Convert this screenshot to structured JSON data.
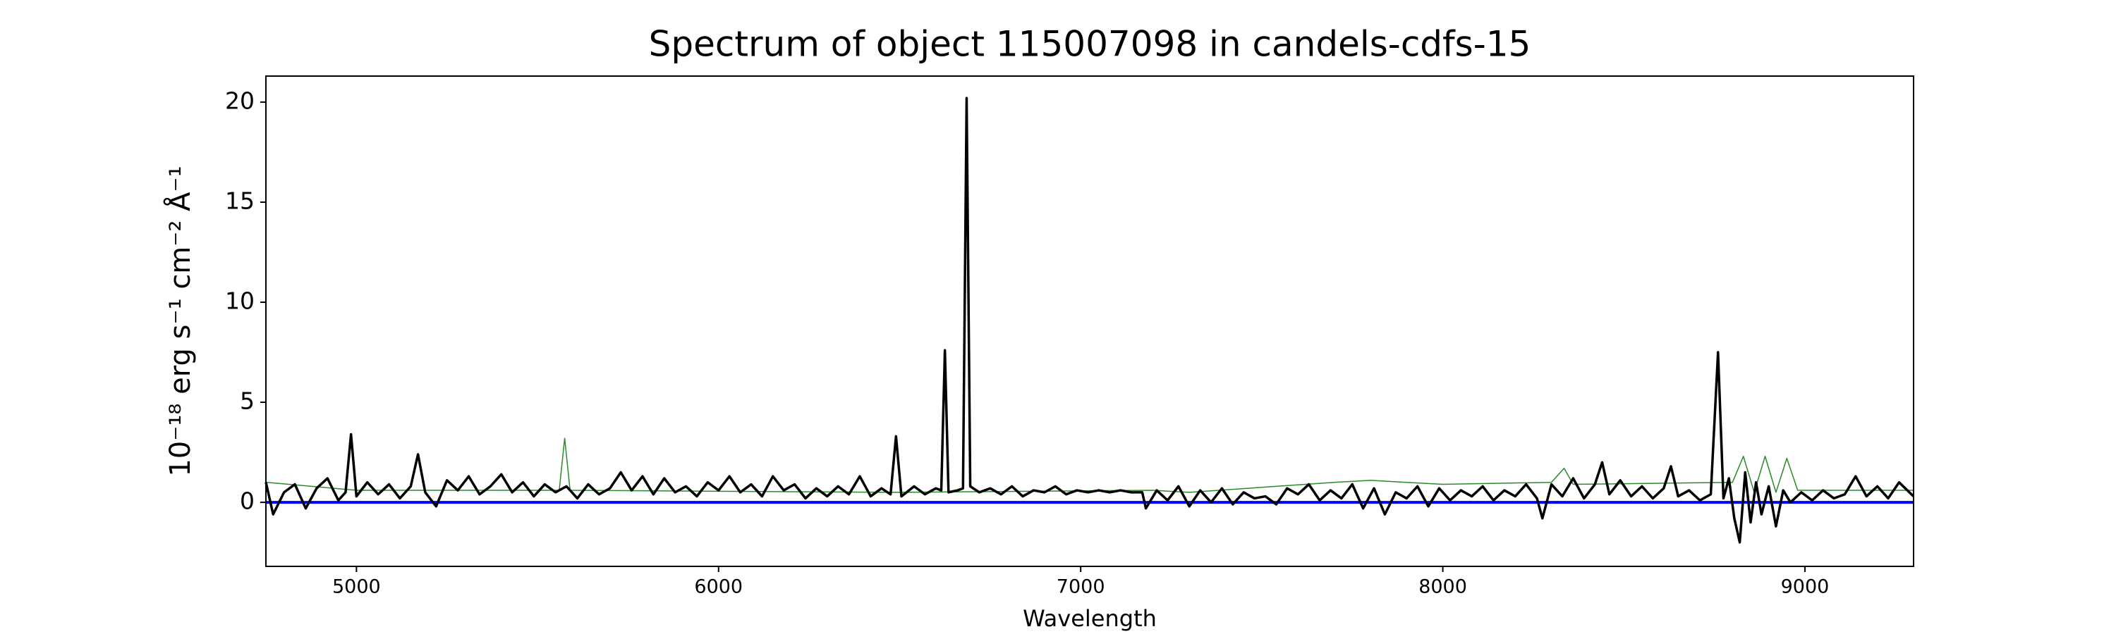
{
  "chart_data": {
    "type": "line",
    "title": "Spectrum of object 115007098 in candels-cdfs-15",
    "x_label": "Wavelength",
    "y_label": "10⁻¹⁸ erg s⁻¹ cm⁻² Å⁻¹",
    "xlim": [
      4750,
      9300
    ],
    "ylim": [
      -3.2,
      21.3
    ],
    "xticks": [
      5000,
      6000,
      7000,
      8000,
      9000
    ],
    "yticks": [
      0,
      5,
      10,
      15,
      20
    ],
    "series": [
      {
        "color": "#2a8a2a",
        "width": 1.5,
        "x": [
          4750,
          5000,
          5560,
          5575,
          5590,
          6500,
          7200,
          7300,
          7700,
          7800,
          7900,
          8000,
          8300,
          8335,
          8360,
          8800,
          8830,
          8860,
          8890,
          8920,
          8950,
          8980,
          9300
        ],
        "values": [
          1.0,
          0.6,
          0.6,
          3.2,
          0.6,
          0.5,
          0.6,
          0.5,
          1.0,
          1.1,
          1.0,
          0.9,
          1.0,
          1.7,
          0.9,
          1.0,
          2.3,
          0.5,
          2.3,
          0.5,
          2.2,
          0.6,
          0.6
        ]
      },
      {
        "color": "#0000ff",
        "width": 4,
        "x": [
          4750,
          9300
        ],
        "values": [
          0,
          0
        ]
      },
      {
        "color": "#000000",
        "width": 3.5,
        "x": [
          4750,
          4770,
          4800,
          4830,
          4860,
          4890,
          4920,
          4950,
          4970,
          4985,
          5000,
          5030,
          5060,
          5090,
          5120,
          5150,
          5170,
          5190,
          5220,
          5250,
          5280,
          5310,
          5340,
          5370,
          5400,
          5430,
          5460,
          5490,
          5520,
          5550,
          5580,
          5610,
          5640,
          5670,
          5700,
          5730,
          5760,
          5790,
          5820,
          5850,
          5880,
          5910,
          5940,
          5970,
          6000,
          6030,
          6060,
          6090,
          6120,
          6150,
          6180,
          6210,
          6240,
          6270,
          6300,
          6330,
          6360,
          6390,
          6420,
          6450,
          6475,
          6490,
          6505,
          6540,
          6570,
          6600,
          6615,
          6625,
          6635,
          6660,
          6675,
          6685,
          6695,
          6720,
          6750,
          6780,
          6810,
          6840,
          6870,
          6900,
          6930,
          6960,
          6990,
          7020,
          7050,
          7080,
          7110,
          7140,
          7170,
          7180,
          7210,
          7240,
          7270,
          7300,
          7330,
          7360,
          7390,
          7420,
          7450,
          7480,
          7510,
          7540,
          7570,
          7600,
          7630,
          7660,
          7690,
          7720,
          7750,
          7780,
          7810,
          7840,
          7870,
          7900,
          7930,
          7960,
          7990,
          8020,
          8050,
          8080,
          8110,
          8140,
          8170,
          8200,
          8230,
          8260,
          8275,
          8300,
          8330,
          8360,
          8390,
          8420,
          8440,
          8460,
          8490,
          8520,
          8550,
          8580,
          8610,
          8630,
          8650,
          8680,
          8710,
          8740,
          8760,
          8775,
          8790,
          8805,
          8820,
          8835,
          8850,
          8865,
          8880,
          8900,
          8920,
          8940,
          8960,
          8990,
          9020,
          9050,
          9080,
          9110,
          9140,
          9170,
          9200,
          9230,
          9260,
          9300
        ],
        "values": [
          1.0,
          -0.6,
          0.5,
          0.9,
          -0.3,
          0.7,
          1.2,
          0.1,
          0.5,
          3.4,
          0.3,
          1.0,
          0.4,
          0.9,
          0.2,
          0.8,
          2.4,
          0.5,
          -0.2,
          1.1,
          0.6,
          1.3,
          0.4,
          0.8,
          1.4,
          0.5,
          1.0,
          0.3,
          0.9,
          0.5,
          0.8,
          0.2,
          0.9,
          0.4,
          0.7,
          1.5,
          0.6,
          1.3,
          0.4,
          1.2,
          0.5,
          0.8,
          0.3,
          1.0,
          0.6,
          1.3,
          0.5,
          0.9,
          0.3,
          1.3,
          0.6,
          0.9,
          0.2,
          0.7,
          0.3,
          0.8,
          0.4,
          1.3,
          0.3,
          0.7,
          0.4,
          3.3,
          0.3,
          0.8,
          0.4,
          0.7,
          0.6,
          7.6,
          0.5,
          0.6,
          0.7,
          20.2,
          0.8,
          0.5,
          0.7,
          0.4,
          0.8,
          0.3,
          0.6,
          0.5,
          0.8,
          0.4,
          0.6,
          0.5,
          0.6,
          0.5,
          0.6,
          0.5,
          0.5,
          -0.3,
          0.6,
          0.1,
          0.8,
          -0.2,
          0.6,
          0.0,
          0.7,
          -0.1,
          0.5,
          0.2,
          0.3,
          -0.1,
          0.7,
          0.4,
          0.9,
          0.1,
          0.6,
          0.2,
          0.9,
          -0.3,
          0.7,
          -0.6,
          0.5,
          0.2,
          0.8,
          -0.2,
          0.7,
          0.1,
          0.6,
          0.3,
          0.8,
          0.1,
          0.6,
          0.3,
          0.9,
          0.2,
          -0.8,
          0.9,
          0.3,
          1.2,
          0.2,
          0.9,
          2.0,
          0.4,
          1.1,
          0.3,
          0.8,
          0.2,
          0.7,
          1.8,
          0.3,
          0.6,
          0.1,
          0.4,
          7.5,
          0.2,
          1.2,
          -0.8,
          -2.0,
          1.5,
          -1.0,
          1.0,
          -0.6,
          0.8,
          -1.2,
          0.6,
          0.0,
          0.5,
          0.1,
          0.6,
          0.2,
          0.4,
          1.3,
          0.3,
          0.8,
          0.2,
          1.0,
          0.3
        ]
      }
    ]
  }
}
